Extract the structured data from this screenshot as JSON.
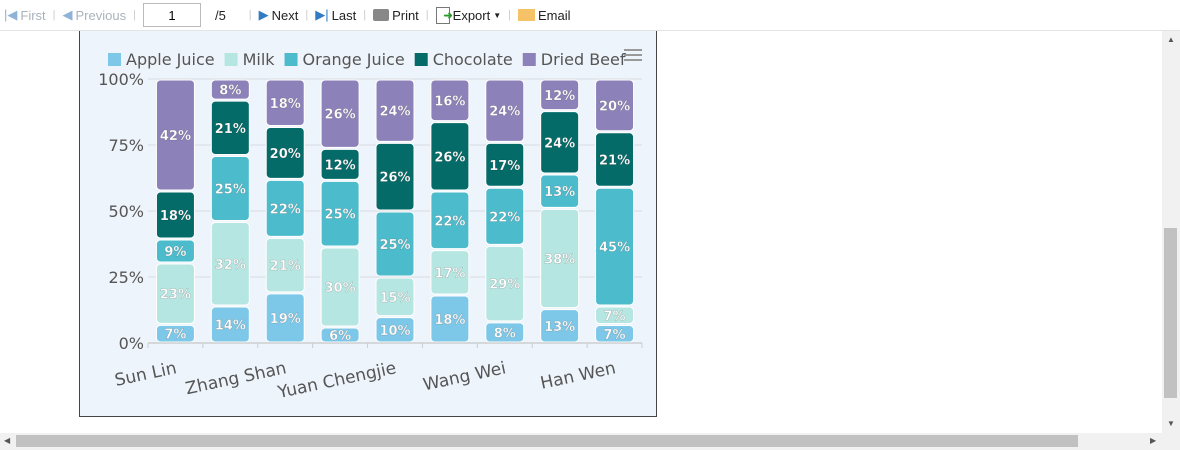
{
  "toolbar": {
    "first": "First",
    "previous": "Previous",
    "page": "1",
    "total": "/5",
    "next": "Next",
    "last": "Last",
    "print": "Print",
    "export": "Export",
    "email": "Email"
  },
  "chart_data": {
    "type": "bar",
    "stacked": "percent",
    "categories": [
      "Sun Lin",
      "",
      "Zhang Shan",
      "",
      "Yuan Chengjie",
      "",
      "Wang Wei",
      "",
      "Han Wen"
    ],
    "yticks": [
      "0%",
      "25%",
      "50%",
      "75%",
      "100%"
    ],
    "ylim": [
      0,
      100
    ],
    "legend_position": "top",
    "series": [
      {
        "name": "Apple Juice",
        "color": "#7dc8e8",
        "values": [
          7,
          14,
          19,
          6,
          10,
          18,
          8,
          13,
          7
        ]
      },
      {
        "name": "Milk",
        "color": "#b6e6e1",
        "values": [
          23,
          32,
          21,
          30,
          15,
          17,
          29,
          38,
          7
        ]
      },
      {
        "name": "Orange Juice",
        "color": "#4cbccd",
        "values": [
          9,
          25,
          22,
          25,
          25,
          22,
          22,
          13,
          45
        ]
      },
      {
        "name": "Chocolate",
        "color": "#046b68",
        "values": [
          18,
          21,
          20,
          12,
          26,
          26,
          17,
          24,
          21
        ]
      },
      {
        "name": "Dried Beef",
        "color": "#8d81b9",
        "values": [
          42,
          8,
          18,
          26,
          24,
          16,
          24,
          12,
          20
        ]
      }
    ]
  }
}
